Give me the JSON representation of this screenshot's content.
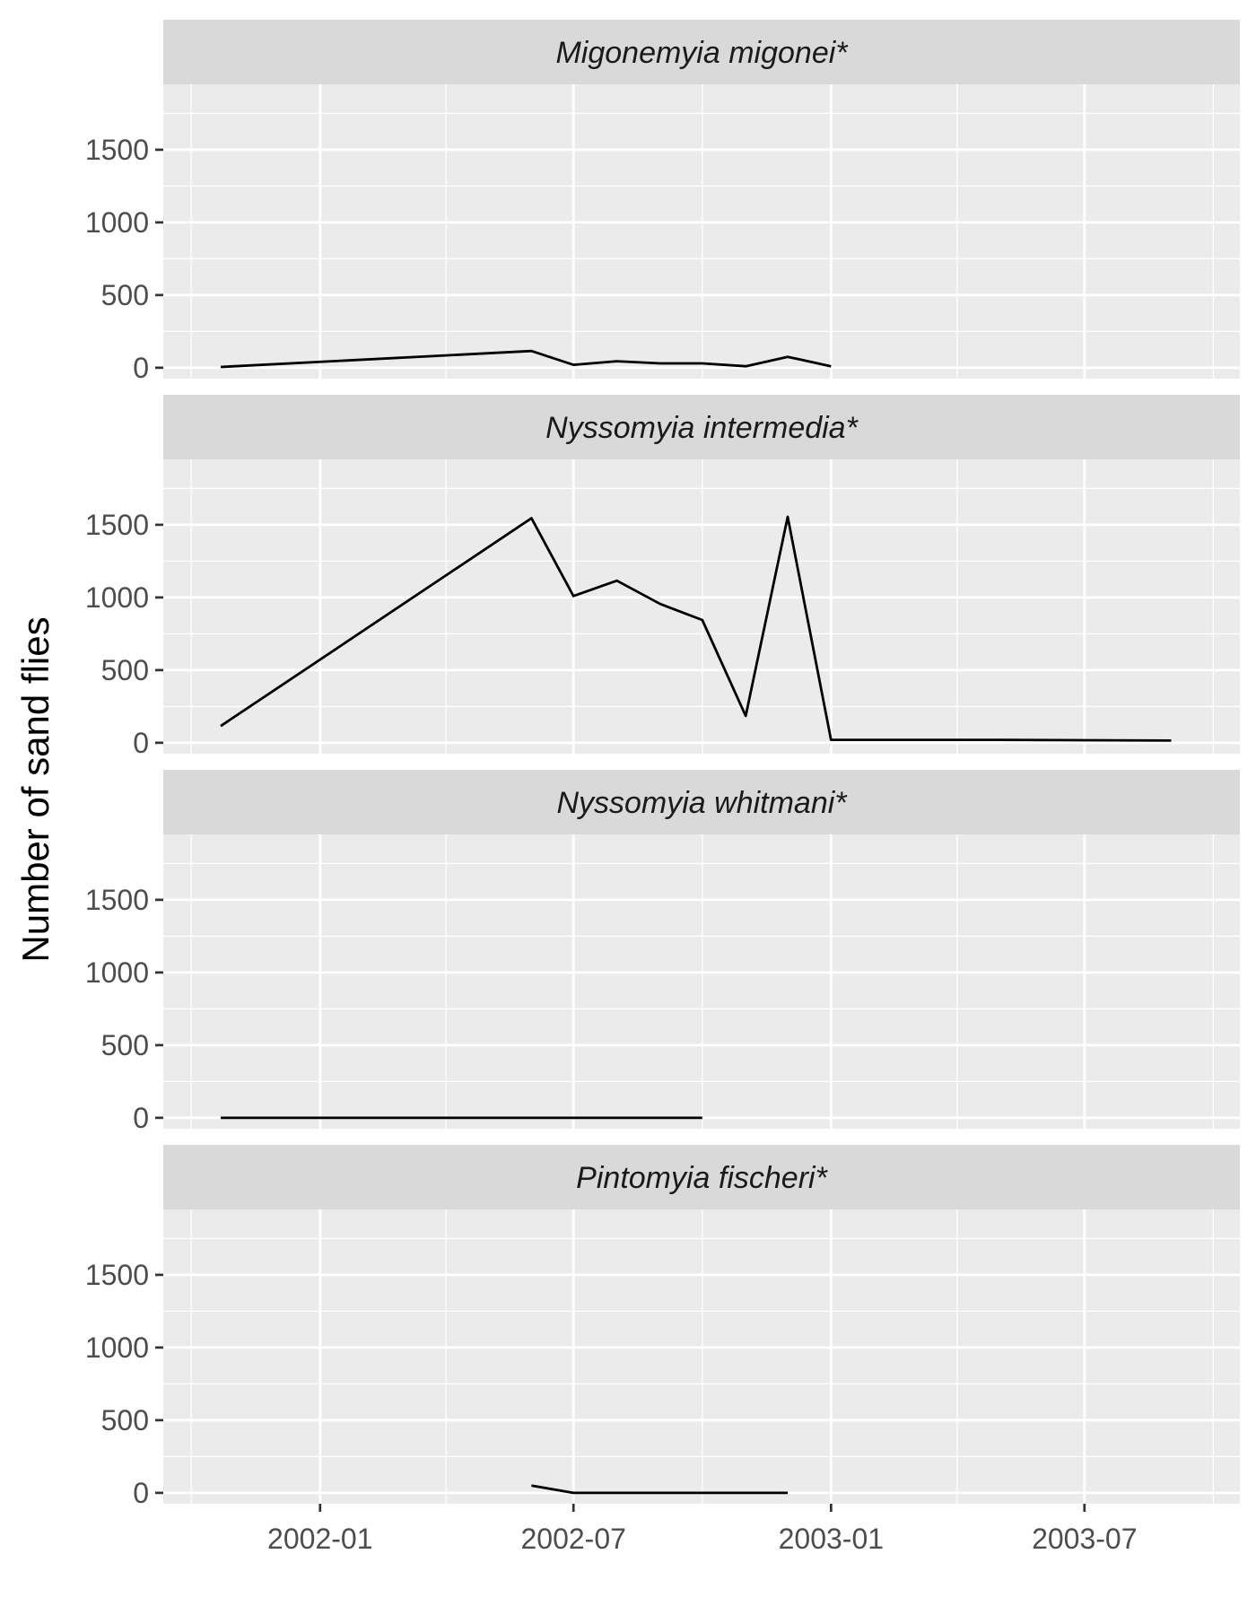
{
  "chart_data": {
    "type": "line",
    "layout": "faceted-vertical",
    "ylabel": "Number of sand flies",
    "xlabel": "",
    "ylim": [
      -75,
      1950
    ],
    "xlim": [
      "2001-09-11",
      "2003-10-20"
    ],
    "y_ticks": [
      0,
      500,
      1000,
      1500
    ],
    "y_tick_labels": [
      "0",
      "500",
      "1000",
      "1500"
    ],
    "x_ticks": [
      "2002-01-01",
      "2002-07-01",
      "2003-01-01",
      "2003-07-01"
    ],
    "x_tick_labels": [
      "2002-01",
      "2002-07",
      "2003-01",
      "2003-07"
    ],
    "x_minor_ticks": [
      "2001-10-01",
      "2002-04-01",
      "2002-10-01",
      "2003-04-01",
      "2003-10-01"
    ],
    "colors": {
      "panel_bg": "#ebebeb",
      "strip_bg": "#d9d9d9",
      "grid": "#ffffff",
      "line": "#000000"
    },
    "facets": [
      {
        "title": "Migonemyia migonei*",
        "points": [
          {
            "x": "2001-10-22",
            "y": 5
          },
          {
            "x": "2002-06-01",
            "y": 115
          },
          {
            "x": "2002-07-01",
            "y": 20
          },
          {
            "x": "2002-08-01",
            "y": 45
          },
          {
            "x": "2002-09-01",
            "y": 30
          },
          {
            "x": "2002-10-01",
            "y": 30
          },
          {
            "x": "2002-11-01",
            "y": 10
          },
          {
            "x": "2002-12-01",
            "y": 75
          },
          {
            "x": "2003-01-01",
            "y": 10
          }
        ]
      },
      {
        "title": "Nyssomyia intermedia*",
        "points": [
          {
            "x": "2001-10-22",
            "y": 115
          },
          {
            "x": "2002-06-01",
            "y": 1545
          },
          {
            "x": "2002-07-01",
            "y": 1010
          },
          {
            "x": "2002-08-01",
            "y": 1115
          },
          {
            "x": "2002-09-01",
            "y": 955
          },
          {
            "x": "2002-10-01",
            "y": 845
          },
          {
            "x": "2002-11-01",
            "y": 185
          },
          {
            "x": "2002-12-01",
            "y": 1555
          },
          {
            "x": "2003-01-01",
            "y": 20
          },
          {
            "x": "2003-05-01",
            "y": 20
          },
          {
            "x": "2003-09-01",
            "y": 15
          }
        ]
      },
      {
        "title": "Nyssomyia whitmani*",
        "points": [
          {
            "x": "2001-10-22",
            "y": 0
          },
          {
            "x": "2002-06-01",
            "y": 0
          },
          {
            "x": "2002-07-01",
            "y": 0
          },
          {
            "x": "2002-08-01",
            "y": 0
          },
          {
            "x": "2002-09-01",
            "y": 0
          },
          {
            "x": "2002-10-01",
            "y": 0
          }
        ]
      },
      {
        "title": "Pintomyia fischeri*",
        "points": [
          {
            "x": "2002-06-01",
            "y": 50
          },
          {
            "x": "2002-07-01",
            "y": 0
          },
          {
            "x": "2002-08-01",
            "y": 0
          },
          {
            "x": "2002-09-01",
            "y": 0
          },
          {
            "x": "2002-10-01",
            "y": 0
          },
          {
            "x": "2002-11-01",
            "y": 0
          },
          {
            "x": "2002-12-01",
            "y": 0
          }
        ]
      }
    ]
  }
}
